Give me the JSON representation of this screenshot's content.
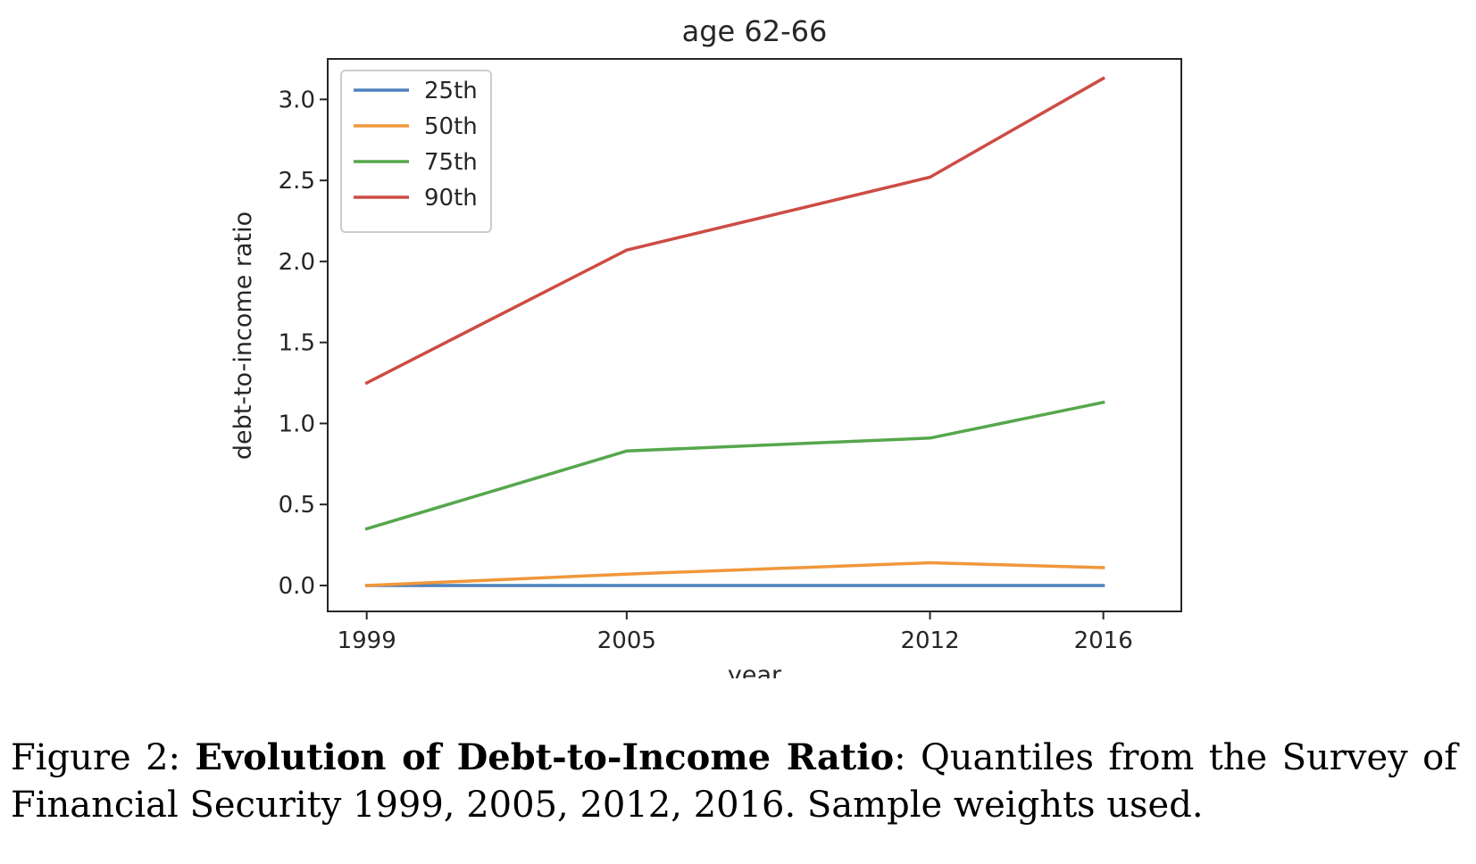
{
  "chart_data": {
    "type": "line",
    "title": "age 62-66",
    "xlabel": "year",
    "ylabel": "debt-to-income ratio",
    "x": [
      1999,
      2005,
      2012,
      2016
    ],
    "x_ticks": [
      "1999",
      "2005",
      "2012",
      "2016"
    ],
    "y_ticks": [
      "0.0",
      "0.5",
      "1.0",
      "1.5",
      "2.0",
      "2.5",
      "3.0"
    ],
    "xlim": [
      1998.1,
      2017.8
    ],
    "ylim": [
      -0.16,
      3.25
    ],
    "grid": false,
    "legend_position": "upper-left",
    "series": [
      {
        "name": "25th",
        "color": "#4e81bd",
        "values": [
          0.0,
          0.0,
          0.0,
          0.0
        ]
      },
      {
        "name": "50th",
        "color": "#f0973a",
        "values": [
          0.0,
          0.07,
          0.14,
          0.11
        ]
      },
      {
        "name": "75th",
        "color": "#56a74c",
        "values": [
          0.35,
          0.83,
          0.91,
          1.13
        ]
      },
      {
        "name": "90th",
        "color": "#cc4c44",
        "values": [
          1.25,
          2.07,
          2.52,
          3.13
        ]
      }
    ]
  },
  "caption": {
    "label": "Figure 2:",
    "bold": "Evolution of Debt-to-Income Ratio",
    "text": ": Quantiles from the Survey of Financial Security 1999, 2005, 2012, 2016. Sample weights used."
  }
}
